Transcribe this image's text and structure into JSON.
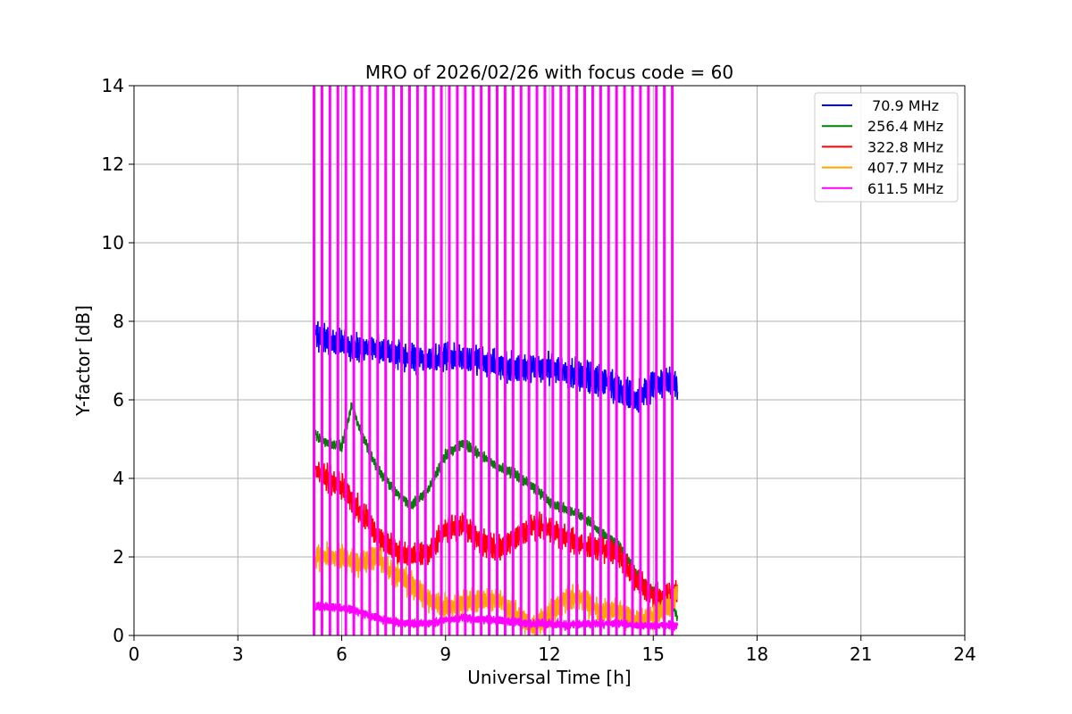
{
  "chart_data": {
    "type": "line",
    "title": "MRO of 2026/02/26 with focus code = 60",
    "xlabel": "Universal Time [h]",
    "ylabel": "Y-factor [dB]",
    "xlim": [
      0,
      24
    ],
    "ylim": [
      0,
      14
    ],
    "xticks": [
      0,
      3,
      6,
      9,
      12,
      15,
      18,
      21,
      24
    ],
    "yticks": [
      0,
      2,
      4,
      6,
      8,
      10,
      12,
      14
    ],
    "xtick_labels": [
      "0",
      "3",
      "6",
      "9",
      "12",
      "15",
      "18",
      "21",
      "24"
    ],
    "ytick_labels": [
      "0",
      "2",
      "4",
      "6",
      "8",
      "10",
      "12",
      "14"
    ],
    "grid": true,
    "legend_position": "top-right",
    "time_range_h": [
      5.25,
      15.7
    ],
    "calibration_spikes": {
      "description": "periodic vertical spikes on 611.5 MHz reaching top of axis",
      "start_h": 5.2,
      "end_h": 15.55,
      "count": 46,
      "peak_db": 14
    },
    "series": [
      {
        "name": "70.9 MHz",
        "label": " 70.9 MHz",
        "color": "#0000ff",
        "x": [
          5.25,
          6,
          6.5,
          7,
          7.5,
          8,
          8.5,
          9,
          9.5,
          10,
          10.5,
          11,
          11.5,
          12,
          12.5,
          13,
          13.5,
          14,
          14.5,
          15,
          15.5,
          15.7
        ],
        "y": [
          7.6,
          7.4,
          7.3,
          7.3,
          7.2,
          7.1,
          7.0,
          7.1,
          7.0,
          7.0,
          6.9,
          6.8,
          6.8,
          6.8,
          6.7,
          6.6,
          6.5,
          6.3,
          6.0,
          6.4,
          6.5,
          6.4
        ],
        "ripple_db": 0.4
      },
      {
        "name": "256.4 MHz",
        "label": "256.4 MHz",
        "color": "#008000",
        "x": [
          5.25,
          5.6,
          6,
          6.3,
          6.5,
          7,
          7.5,
          8,
          8.5,
          9,
          9.5,
          10,
          10.5,
          11,
          11.5,
          12,
          12.5,
          13,
          13.5,
          14,
          14.5,
          15,
          15.5,
          15.7
        ],
        "y": [
          5.1,
          4.9,
          4.8,
          5.9,
          5.3,
          4.3,
          3.7,
          3.3,
          3.7,
          4.6,
          4.9,
          4.6,
          4.3,
          4.1,
          3.8,
          3.4,
          3.2,
          3.0,
          2.6,
          2.3,
          1.6,
          1.1,
          0.8,
          0.5
        ],
        "ripple_db": 0.15
      },
      {
        "name": "322.8 MHz",
        "label": "322.8 MHz",
        "color": "#ff0000",
        "x": [
          5.25,
          6,
          6.5,
          7,
          7.5,
          8,
          8.5,
          9,
          9.5,
          10,
          10.5,
          11,
          11.5,
          12,
          12.5,
          13,
          13.5,
          14,
          14.5,
          15,
          15.5,
          15.7
        ],
        "y": [
          4.2,
          3.8,
          3.2,
          2.6,
          2.2,
          2.0,
          2.1,
          2.7,
          2.8,
          2.4,
          2.2,
          2.5,
          2.8,
          2.7,
          2.5,
          2.3,
          2.2,
          2.1,
          1.4,
          1.0,
          1.0,
          1.1
        ],
        "ripple_db": 0.35
      },
      {
        "name": "407.7 MHz",
        "label": "407.7 MHz",
        "color": "#ffa500",
        "x": [
          5.25,
          6,
          6.5,
          7,
          7.5,
          8,
          8.5,
          9,
          9.5,
          10,
          10.5,
          11,
          11.5,
          12,
          12.5,
          13,
          13.5,
          14,
          14.5,
          15,
          15.5,
          15.7
        ],
        "y": [
          2.0,
          2.0,
          1.8,
          2.0,
          1.6,
          1.3,
          0.9,
          0.7,
          0.8,
          0.9,
          0.9,
          0.6,
          0.2,
          0.5,
          1.0,
          0.9,
          0.6,
          0.6,
          0.4,
          0.5,
          0.8,
          1.1
        ],
        "ripple_db": 0.35
      },
      {
        "name": "611.5 MHz",
        "label": "611.5 MHz",
        "color": "#ff00ff",
        "x": [
          5.25,
          6,
          6.5,
          7,
          7.5,
          8,
          8.5,
          9,
          9.5,
          10,
          10.5,
          11,
          11.5,
          12,
          12.5,
          13,
          13.5,
          14,
          14.5,
          15,
          15.5,
          15.7
        ],
        "y": [
          0.75,
          0.7,
          0.6,
          0.45,
          0.35,
          0.3,
          0.3,
          0.4,
          0.45,
          0.4,
          0.4,
          0.35,
          0.3,
          0.3,
          0.25,
          0.3,
          0.3,
          0.3,
          0.25,
          0.25,
          0.25,
          0.25
        ],
        "ripple_db": 0.12
      }
    ]
  }
}
